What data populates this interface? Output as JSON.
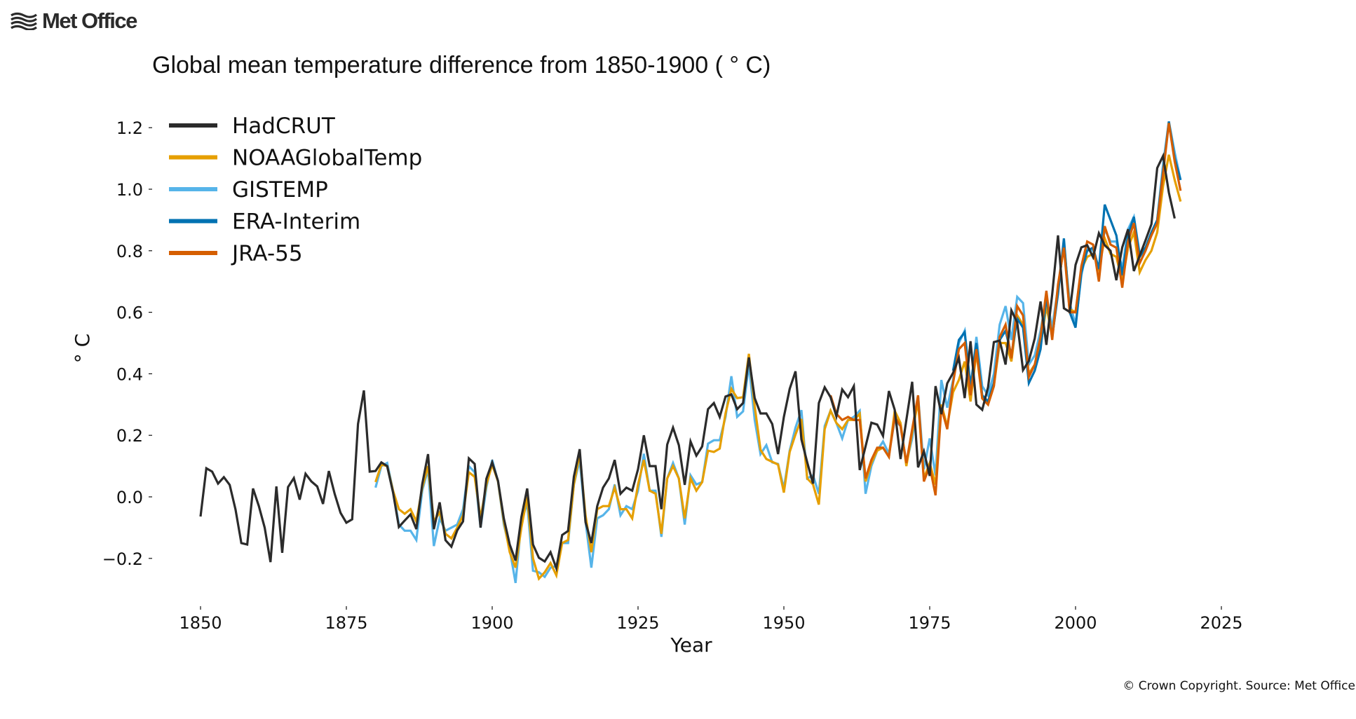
{
  "brand": {
    "logo_text": "Met Office",
    "logo_icon": "waves-icon"
  },
  "copyright": "© Crown Copyright. Source: Met Office",
  "chart_data": {
    "type": "line",
    "title": "Global mean temperature difference from 1850-1900 ( ° C)",
    "xlabel": "Year",
    "ylabel": "° C",
    "xlim": [
      1842,
      2030
    ],
    "ylim": [
      -0.32,
      1.28
    ],
    "xticks": [
      1850,
      1875,
      1900,
      1925,
      1950,
      1975,
      2000,
      2025
    ],
    "xtick_labels": [
      "1850",
      "1875",
      "1900",
      "1925",
      "1950",
      "1975",
      "2000",
      "2025"
    ],
    "yticks": [
      -0.2,
      0.0,
      0.2,
      0.4,
      0.6,
      0.8,
      1.0,
      1.2
    ],
    "ytick_labels": [
      "−0.2",
      "0.0",
      "0.2",
      "0.4",
      "0.6",
      "0.8",
      "1.0",
      "1.2"
    ],
    "grid": false,
    "legend_position": "top-left",
    "series": [
      {
        "name": "HadCRUT",
        "color": "#2b2b2b",
        "start_year": 1850,
        "values": [
          -0.064,
          0.093,
          0.082,
          0.043,
          0.064,
          0.039,
          -0.041,
          -0.15,
          -0.155,
          0.027,
          -0.03,
          -0.1,
          -0.212,
          0.034,
          -0.182,
          0.032,
          0.061,
          -0.009,
          0.075,
          0.05,
          0.034,
          -0.023,
          0.084,
          0.009,
          -0.052,
          -0.084,
          -0.073,
          0.237,
          0.346,
          0.082,
          0.084,
          0.112,
          0.1,
          0.014,
          -0.098,
          -0.077,
          -0.057,
          -0.105,
          0.041,
          0.139,
          -0.105,
          -0.018,
          -0.141,
          -0.162,
          -0.109,
          -0.08,
          0.125,
          0.107,
          -0.1,
          0.059,
          0.112,
          0.052,
          -0.07,
          -0.155,
          -0.207,
          -0.066,
          0.027,
          -0.155,
          -0.198,
          -0.21,
          -0.18,
          -0.232,
          -0.124,
          -0.111,
          0.066,
          0.155,
          -0.082,
          -0.15,
          -0.03,
          0.03,
          0.06,
          0.12,
          0.01,
          0.03,
          0.02,
          0.09,
          0.2,
          0.1,
          0.1,
          -0.04,
          0.17,
          0.225,
          0.168,
          0.039,
          0.18,
          0.134,
          0.164,
          0.285,
          0.305,
          0.26,
          0.326,
          0.333,
          0.285,
          0.305,
          0.453,
          0.321,
          0.271,
          0.271,
          0.237,
          0.139,
          0.26,
          0.351,
          0.408,
          0.187,
          0.112,
          0.043,
          0.305,
          0.356,
          0.324,
          0.262,
          0.349,
          0.324,
          0.36,
          0.087,
          0.164,
          0.241,
          0.235,
          0.198,
          0.344,
          0.283,
          0.123,
          0.25,
          0.374,
          0.096,
          0.148,
          0.068,
          0.36,
          0.269,
          0.369,
          0.403,
          0.451,
          0.321,
          0.506,
          0.3,
          0.283,
          0.356,
          0.503,
          0.508,
          0.43,
          0.606,
          0.567,
          0.412,
          0.442,
          0.515,
          0.635,
          0.494,
          0.658,
          0.85,
          0.613,
          0.601,
          0.754,
          0.811,
          0.818,
          0.779,
          0.857,
          0.818,
          0.8,
          0.704,
          0.811,
          0.87,
          0.734,
          0.784,
          0.834,
          0.886,
          1.069,
          1.108,
          0.989,
          0.905
        ]
      },
      {
        "name": "NOAAGlobalTemp",
        "color": "#e69f00",
        "start_year": 1880,
        "values": [
          0.048,
          0.105,
          0.1,
          0.02,
          -0.04,
          -0.055,
          -0.04,
          -0.08,
          0.03,
          0.1,
          -0.08,
          -0.05,
          -0.12,
          -0.135,
          -0.1,
          -0.06,
          0.08,
          0.065,
          -0.07,
          0.04,
          0.105,
          0.05,
          -0.08,
          -0.18,
          -0.23,
          -0.1,
          0.0,
          -0.2,
          -0.266,
          -0.245,
          -0.215,
          -0.255,
          -0.15,
          -0.14,
          0.04,
          0.14,
          -0.06,
          -0.18,
          -0.04,
          -0.03,
          -0.03,
          0.03,
          -0.04,
          -0.04,
          -0.07,
          0.04,
          0.12,
          0.02,
          0.01,
          -0.12,
          0.06,
          0.1,
          0.06,
          -0.07,
          0.06,
          0.02,
          0.048,
          0.15,
          0.146,
          0.157,
          0.271,
          0.351,
          0.321,
          0.324,
          0.465,
          0.294,
          0.153,
          0.123,
          0.114,
          0.105,
          0.014,
          0.146,
          0.203,
          0.253,
          0.06,
          0.04,
          -0.025,
          0.22,
          0.28,
          0.24,
          0.22,
          0.25,
          0.25,
          0.27,
          0.05,
          0.11,
          0.15,
          0.16,
          0.13,
          0.28,
          0.24,
          0.1,
          0.21,
          0.31,
          0.06,
          0.11,
          0.04,
          0.3,
          0.23,
          0.34,
          0.38,
          0.44,
          0.31,
          0.47,
          0.32,
          0.3,
          0.36,
          0.5,
          0.5,
          0.44,
          0.59,
          0.56,
          0.4,
          0.43,
          0.49,
          0.62,
          0.52,
          0.67,
          0.83,
          0.61,
          0.6,
          0.74,
          0.78,
          0.79,
          0.74,
          0.84,
          0.79,
          0.78,
          0.7,
          0.81,
          0.86,
          0.73,
          0.77,
          0.8,
          0.86,
          1.01,
          1.112,
          1.03,
          0.96
        ]
      },
      {
        "name": "GISTEMP",
        "color": "#56b4e9",
        "start_year": 1880,
        "values": [
          0.03,
          0.1,
          0.11,
          0.02,
          -0.09,
          -0.11,
          -0.11,
          -0.14,
          0.02,
          0.09,
          -0.16,
          -0.07,
          -0.11,
          -0.1,
          -0.09,
          -0.04,
          0.1,
          0.08,
          -0.1,
          0.03,
          0.12,
          0.05,
          -0.09,
          -0.17,
          -0.28,
          -0.08,
          -0.02,
          -0.24,
          -0.245,
          -0.26,
          -0.23,
          -0.225,
          -0.15,
          -0.15,
          0.04,
          0.12,
          -0.08,
          -0.23,
          -0.07,
          -0.06,
          -0.04,
          0.04,
          -0.06,
          -0.03,
          -0.04,
          0.02,
          0.14,
          0.02,
          0.02,
          -0.13,
          0.06,
          0.11,
          0.06,
          -0.09,
          0.07,
          0.04,
          0.048,
          0.173,
          0.184,
          0.184,
          0.26,
          0.392,
          0.26,
          0.278,
          0.43,
          0.25,
          0.139,
          0.168,
          0.112,
          0.107,
          0.027,
          0.15,
          0.225,
          0.282,
          0.06,
          0.07,
          0.01,
          0.23,
          0.28,
          0.24,
          0.19,
          0.25,
          0.26,
          0.28,
          0.01,
          0.1,
          0.15,
          0.18,
          0.14,
          0.25,
          0.23,
          0.11,
          0.19,
          0.33,
          0.09,
          0.19,
          0.07,
          0.38,
          0.29,
          0.38,
          0.5,
          0.54,
          0.34,
          0.52,
          0.36,
          0.33,
          0.4,
          0.56,
          0.62,
          0.51,
          0.65,
          0.63,
          0.43,
          0.46,
          0.54,
          0.65,
          0.55,
          0.68,
          0.82,
          0.63,
          0.56,
          0.72,
          0.81,
          0.8,
          0.74,
          0.87,
          0.83,
          0.83,
          0.74,
          0.87,
          0.91,
          0.79,
          0.81,
          0.85,
          0.9,
          1.08,
          1.22,
          1.12,
          1.03
        ]
      },
      {
        "name": "ERA-Interim",
        "color": "#0072b2",
        "start_year": 1979,
        "values": [
          0.41,
          0.51,
          0.535,
          0.36,
          0.5,
          0.33,
          0.31,
          0.37,
          0.51,
          0.54,
          0.46,
          0.58,
          0.55,
          0.37,
          0.41,
          0.48,
          0.65,
          0.52,
          0.66,
          0.84,
          0.6,
          0.55,
          0.73,
          0.8,
          0.81,
          0.74,
          0.95,
          0.9,
          0.85,
          0.72,
          0.85,
          0.91,
          0.78,
          0.81,
          0.86,
          0.9,
          1.06,
          1.22,
          1.1,
          1.03
        ]
      },
      {
        "name": "JRA-55",
        "color": "#d55e00",
        "start_year": 1958,
        "values": [
          0.33,
          0.27,
          0.25,
          0.26,
          0.25,
          0.25,
          0.06,
          0.12,
          0.16,
          0.16,
          0.13,
          0.26,
          0.23,
          0.11,
          0.22,
          0.33,
          0.05,
          0.1,
          0.005,
          0.29,
          0.22,
          0.37,
          0.48,
          0.5,
          0.33,
          0.48,
          0.32,
          0.3,
          0.36,
          0.52,
          0.56,
          0.45,
          0.62,
          0.59,
          0.39,
          0.43,
          0.52,
          0.67,
          0.51,
          0.69,
          0.81,
          0.6,
          0.6,
          0.75,
          0.83,
          0.82,
          0.7,
          0.88,
          0.82,
          0.81,
          0.68,
          0.83,
          0.89,
          0.76,
          0.8,
          0.85,
          0.89,
          1.05,
          1.215,
          1.09,
          0.995
        ]
      }
    ]
  }
}
